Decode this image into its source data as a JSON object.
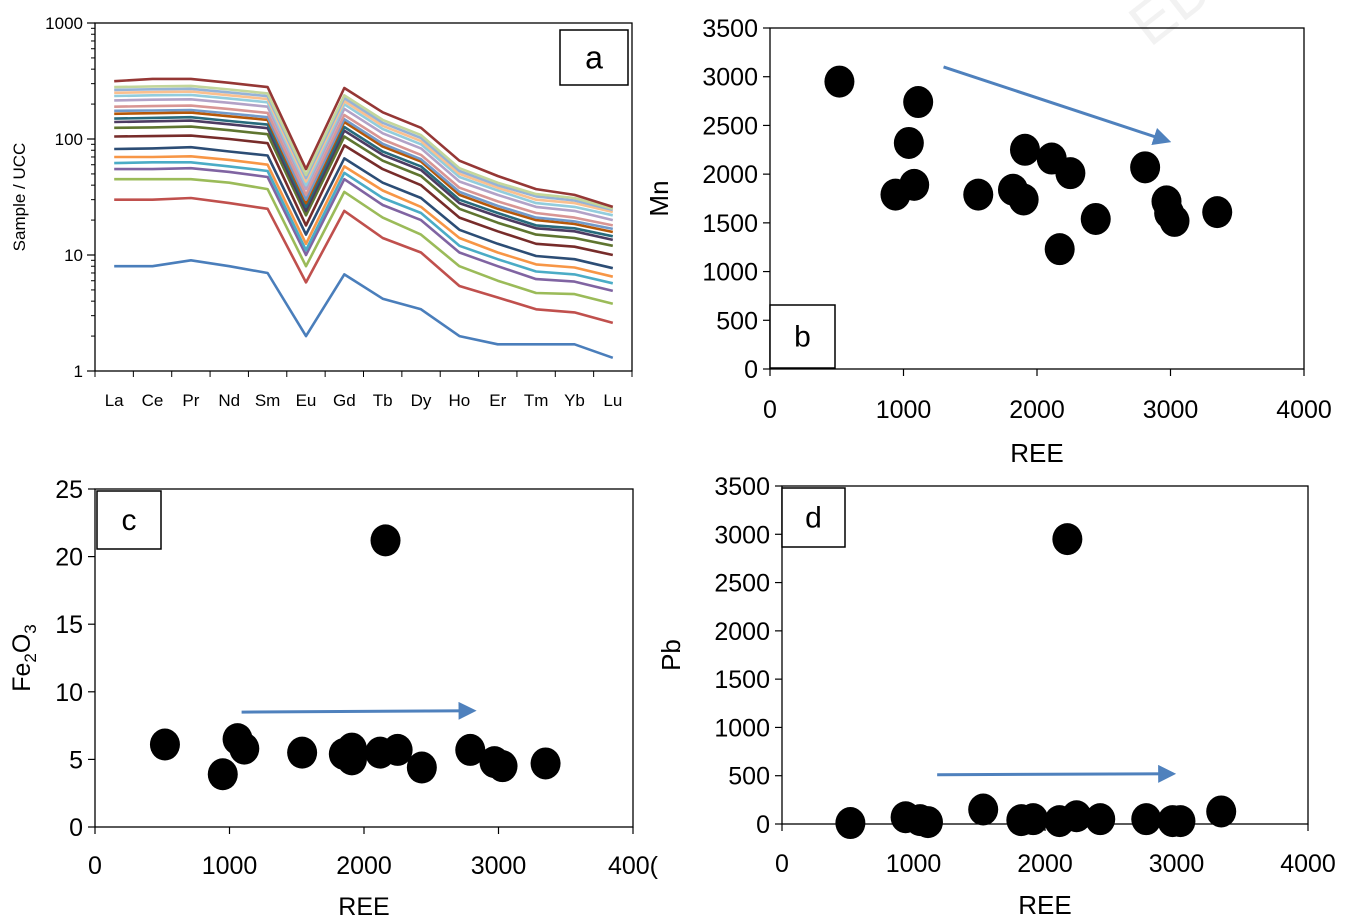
{
  "watermark_fragment": "ED",
  "chart_data": [
    {
      "id": "a",
      "type": "line",
      "panel_label": "a",
      "ylabel": "Sample / UCC",
      "yscale": "log",
      "ylim": [
        1,
        1000
      ],
      "ytick_labels": [
        "1",
        "10",
        "100",
        "1000"
      ],
      "categories": [
        "La",
        "Ce",
        "Pr",
        "Nd",
        "Sm",
        "Eu",
        "Gd",
        "Tb",
        "Dy",
        "Ho",
        "Er",
        "Tm",
        "Yb",
        "Lu"
      ],
      "series": [
        {
          "color": "#4a7ebb",
          "values": [
            8,
            8,
            9,
            8,
            7,
            2,
            6.8,
            4.2,
            3.4,
            2.0,
            1.7,
            1.7,
            1.7,
            1.3
          ]
        },
        {
          "color": "#c0504d",
          "values": [
            30,
            30,
            31,
            28,
            25,
            5.8,
            24,
            14,
            10.5,
            5.4,
            4.3,
            3.4,
            3.2,
            2.6
          ]
        },
        {
          "color": "#9bbb59",
          "values": [
            45,
            45,
            45,
            42,
            37,
            8.0,
            35,
            21,
            15,
            8.0,
            6.0,
            4.7,
            4.6,
            3.8
          ]
        },
        {
          "color": "#8064a2",
          "values": [
            55,
            55,
            56,
            52,
            47,
            10,
            45,
            27,
            20,
            10.5,
            8.0,
            6.2,
            5.9,
            4.9
          ]
        },
        {
          "color": "#4bacc6",
          "values": [
            62,
            63,
            63,
            58,
            53,
            11,
            51,
            31,
            23,
            12,
            9.2,
            7.2,
            6.8,
            5.7
          ]
        },
        {
          "color": "#f79646",
          "values": [
            70,
            70,
            71,
            66,
            60,
            12.5,
            58,
            36,
            26,
            14,
            10.5,
            8.3,
            7.8,
            6.5
          ]
        },
        {
          "color": "#2c4d75",
          "values": [
            82,
            83,
            85,
            78,
            72,
            15,
            68,
            42,
            31,
            16.5,
            12.5,
            9.8,
            9.2,
            7.7
          ]
        },
        {
          "color": "#772c2a",
          "values": [
            105,
            106,
            107,
            100,
            92,
            18,
            88,
            55,
            40,
            21,
            16,
            12.5,
            11.8,
            10
          ]
        },
        {
          "color": "#5f7530",
          "values": [
            125,
            126,
            128,
            119,
            110,
            22,
            105,
            65,
            48,
            25,
            19,
            15,
            14,
            12
          ]
        },
        {
          "color": "#4d3b62",
          "values": [
            140,
            142,
            144,
            134,
            124,
            24,
            118,
            73,
            54,
            28,
            21.5,
            17,
            16,
            13.5
          ]
        },
        {
          "color": "#276a7c",
          "values": [
            150,
            152,
            154,
            143,
            133,
            26,
            127,
            78,
            58,
            30,
            23,
            18,
            17,
            14.5
          ]
        },
        {
          "color": "#b65708",
          "values": [
            165,
            167,
            169,
            157,
            146,
            28,
            140,
            86,
            64,
            33,
            25,
            20,
            18.5,
            15.8
          ]
        },
        {
          "color": "#729aca",
          "values": [
            175,
            176,
            178,
            166,
            154,
            30,
            148,
            91,
            67,
            35,
            26.5,
            21,
            19.5,
            16.8
          ]
        },
        {
          "color": "#d99694",
          "values": [
            190,
            192,
            194,
            181,
            168,
            33,
            161,
            99,
            73,
            38,
            29,
            23,
            21,
            18
          ]
        },
        {
          "color": "#b3a2c7",
          "values": [
            215,
            218,
            220,
            205,
            190,
            37,
            182,
            112,
            83,
            43,
            33,
            26,
            24,
            20
          ]
        },
        {
          "color": "#93cddd",
          "values": [
            235,
            238,
            240,
            223,
            207,
            40,
            199,
            122,
            90,
            47,
            36,
            28,
            26,
            22
          ]
        },
        {
          "color": "#fac08f",
          "values": [
            250,
            253,
            256,
            238,
            221,
            43,
            212,
            130,
            96,
            50,
            38,
            30,
            28,
            23.5
          ]
        },
        {
          "color": "#95b3d7",
          "values": [
            265,
            268,
            271,
            252,
            234,
            46,
            225,
            138,
            102,
            53,
            40,
            32,
            29.5,
            24.5
          ]
        },
        {
          "color": "#c3d69b",
          "values": [
            280,
            284,
            287,
            267,
            247,
            49,
            238,
            146,
            108,
            56,
            42,
            33.5,
            31,
            25
          ]
        },
        {
          "color": "#953735",
          "values": [
            315,
            330,
            330,
            305,
            280,
            55,
            275,
            170,
            125,
            65,
            48,
            37,
            33,
            26
          ]
        }
      ]
    },
    {
      "id": "b",
      "type": "scatter",
      "panel_label": "b",
      "xlabel": "REE",
      "ylabel": "Mn",
      "xlim": [
        0,
        4000
      ],
      "ylim": [
        0,
        3500
      ],
      "xtick_labels": [
        "0",
        "1000",
        "2000",
        "3000",
        "4000"
      ],
      "ytick_labels": [
        "0",
        "500",
        "1000",
        "1500",
        "2000",
        "2500",
        "3000",
        "3500"
      ],
      "points": [
        [
          520,
          2950
        ],
        [
          940,
          1790
        ],
        [
          1040,
          2320
        ],
        [
          1080,
          1890
        ],
        [
          1110,
          2740
        ],
        [
          1560,
          1790
        ],
        [
          1820,
          1840
        ],
        [
          1900,
          1740
        ],
        [
          1910,
          2250
        ],
        [
          2110,
          2160
        ],
        [
          2170,
          1230
        ],
        [
          2250,
          2010
        ],
        [
          2440,
          1540
        ],
        [
          2810,
          2070
        ],
        [
          2970,
          1720
        ],
        [
          2990,
          1600
        ],
        [
          3030,
          1520
        ],
        [
          3350,
          1610
        ]
      ],
      "trend_arrow": {
        "from": [
          1300,
          3100
        ],
        "to": [
          2980,
          2340
        ],
        "color": "#4f81bd"
      }
    },
    {
      "id": "c",
      "type": "scatter",
      "panel_label": "c",
      "xlabel": "REE",
      "ylabel_main": "Fe",
      "ylabel_sub1": "2",
      "ylabel_mid": "O",
      "ylabel_sub2": "3",
      "xlim": [
        0,
        4000
      ],
      "ylim": [
        0,
        25
      ],
      "xtick_labels": [
        "0",
        "1000",
        "2000",
        "3000",
        "400("
      ],
      "ytick_labels": [
        "0",
        "5",
        "10",
        "15",
        "20",
        "25"
      ],
      "points": [
        [
          520,
          6.1
        ],
        [
          950,
          3.9
        ],
        [
          1060,
          6.5
        ],
        [
          1110,
          5.8
        ],
        [
          1540,
          5.5
        ],
        [
          1850,
          5.4
        ],
        [
          1910,
          5.8
        ],
        [
          1910,
          5.0
        ],
        [
          2120,
          5.5
        ],
        [
          2160,
          21.2
        ],
        [
          2250,
          5.7
        ],
        [
          2430,
          4.4
        ],
        [
          2790,
          5.7
        ],
        [
          2970,
          4.8
        ],
        [
          3030,
          4.5
        ],
        [
          3350,
          4.7
        ]
      ],
      "trend_arrow": {
        "from": [
          1090,
          8.5
        ],
        "to": [
          2810,
          8.6
        ],
        "color": "#4f81bd"
      }
    },
    {
      "id": "d",
      "type": "scatter",
      "panel_label": "d",
      "xlabel": "REE",
      "ylabel": "Pb",
      "xlim": [
        0,
        4000
      ],
      "ylim": [
        0,
        3500
      ],
      "xtick_labels": [
        "0",
        "1000",
        "2000",
        "3000",
        "4000"
      ],
      "ytick_labels": [
        "0",
        "500",
        "1000",
        "1500",
        "2000",
        "2500",
        "3000",
        "3500"
      ],
      "points": [
        [
          520,
          10
        ],
        [
          940,
          70
        ],
        [
          1050,
          40
        ],
        [
          1110,
          20
        ],
        [
          1530,
          150
        ],
        [
          1820,
          40
        ],
        [
          1910,
          50
        ],
        [
          2110,
          30
        ],
        [
          2170,
          2950
        ],
        [
          2240,
          80
        ],
        [
          2420,
          50
        ],
        [
          2770,
          50
        ],
        [
          2970,
          30
        ],
        [
          3030,
          30
        ],
        [
          3340,
          130
        ]
      ],
      "trend_arrow": {
        "from": [
          1180,
          510
        ],
        "to": [
          2970,
          520
        ],
        "color": "#4f81bd"
      }
    }
  ]
}
